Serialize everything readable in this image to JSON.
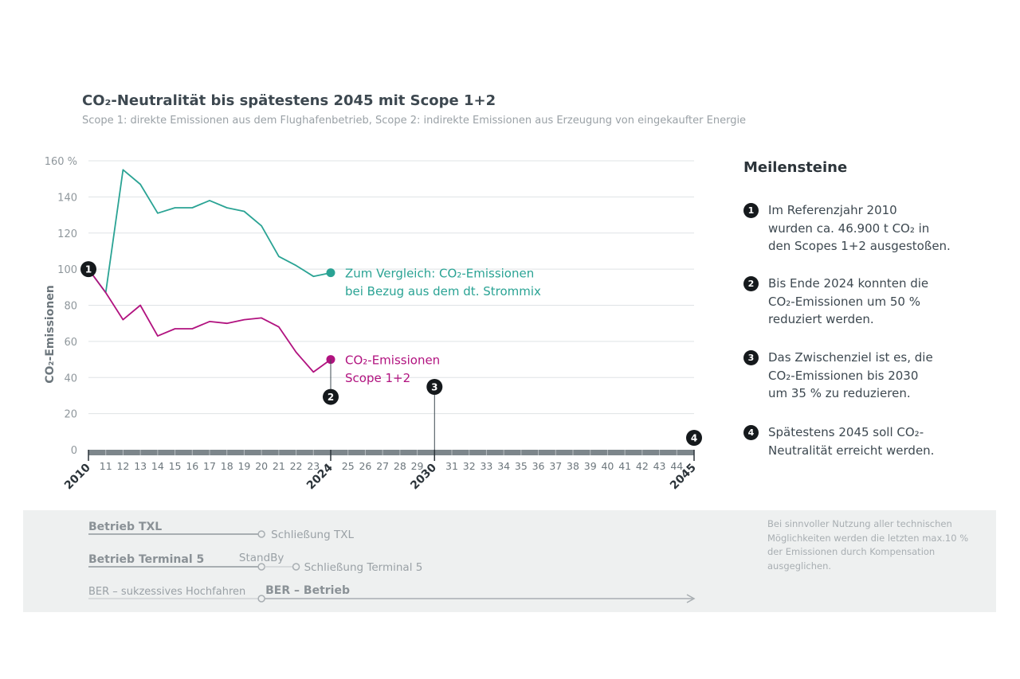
{
  "title": "CO₂-Neutralität bis spätestens 2045 mit Scope 1+2",
  "subtitle": "Scope 1: direkte Emissionen aus dem Flughafenbetrieb, Scope 2: indirekte Emissionen aus Erzeugung von eingekaufter Energie",
  "colors": {
    "teal": "#2aa394",
    "magenta": "#b1127f",
    "axis_gray": "#7d868b",
    "dark": "#15191c"
  },
  "chart_data": {
    "type": "line",
    "title": "CO₂-Neutralität bis spätestens 2045 mit Scope 1+2",
    "ylabel": "CO₂-Emissionen",
    "xlim": [
      2010,
      2045
    ],
    "ylim": [
      0,
      160
    ],
    "yticks": [
      0,
      20,
      40,
      60,
      80,
      100,
      120,
      140,
      160
    ],
    "ytick_labels": [
      "0",
      "20",
      "40",
      "60",
      "80",
      "100",
      "120",
      "140",
      "160 %"
    ],
    "xtick_labels": [
      "11",
      "12",
      "13",
      "14",
      "15",
      "16",
      "17",
      "18",
      "19",
      "20",
      "21",
      "22",
      "23",
      "25",
      "26",
      "27",
      "28",
      "29",
      "31",
      "32",
      "33",
      "34",
      "35",
      "36",
      "37",
      "38",
      "39",
      "40",
      "41",
      "42",
      "43",
      "44"
    ],
    "xtick_values": [
      2011,
      2012,
      2013,
      2014,
      2015,
      2016,
      2017,
      2018,
      2019,
      2020,
      2021,
      2022,
      2023,
      2025,
      2026,
      2027,
      2028,
      2029,
      2031,
      2032,
      2033,
      2034,
      2035,
      2036,
      2037,
      2038,
      2039,
      2040,
      2041,
      2042,
      2043,
      2044
    ],
    "xmajor_labels": [
      "2010",
      "2024",
      "2030",
      "2045"
    ],
    "xmajor_values": [
      2010,
      2024,
      2030,
      2045
    ],
    "grid": true,
    "series": [
      {
        "name": "Zum Vergleich: CO₂-Emissionen bei Bezug aus dem dt. Strommix",
        "label_lines": [
          "Zum Vergleich: CO₂-Emissionen",
          "bei Bezug aus dem dt. Strommix"
        ],
        "color": "#2aa394",
        "x": [
          2010,
          2011,
          2012,
          2013,
          2014,
          2015,
          2016,
          2017,
          2018,
          2019,
          2020,
          2021,
          2022,
          2023,
          2024
        ],
        "y": [
          100,
          87,
          155,
          147,
          131,
          134,
          134,
          138,
          134,
          132,
          124,
          107,
          102,
          96,
          98
        ]
      },
      {
        "name": "CO₂-Emissionen Scope 1+2",
        "label_lines": [
          "CO₂-Emissionen",
          "Scope 1+2"
        ],
        "color": "#b1127f",
        "x": [
          2010,
          2011,
          2012,
          2013,
          2014,
          2015,
          2016,
          2017,
          2018,
          2019,
          2020,
          2021,
          2022,
          2023,
          2024
        ],
        "y": [
          100,
          87,
          72,
          80,
          63,
          67,
          67,
          71,
          70,
          72,
          73,
          68,
          54,
          43,
          50
        ]
      }
    ],
    "annotations": [
      {
        "num": "1",
        "x": 2010,
        "y": 100
      },
      {
        "num": "2",
        "x": 2024,
        "y": 50
      },
      {
        "num": "3",
        "x": 2030,
        "y": 0
      },
      {
        "num": "4",
        "x": 2045,
        "y": 0
      }
    ]
  },
  "milestones": {
    "title": "Meilensteine",
    "items": [
      {
        "num": "1",
        "text": "Im Referenzjahr 2010\nwurden ca. 46.900 t CO₂ in\nden Scopes 1+2 ausgestoßen."
      },
      {
        "num": "2",
        "text": "Bis Ende 2024 konnten die\nCO₂-Emissionen um 50 %\nreduziert werden."
      },
      {
        "num": "3",
        "text": "Das Zwischenziel ist es, die\nCO₂-Emissionen bis 2030\num 35 % zu reduzieren."
      },
      {
        "num": "4",
        "text": "Spätestens 2045 soll CO₂-\nNeutralität erreicht werden."
      }
    ]
  },
  "timeline": {
    "txl": {
      "label": "Betrieb TXL",
      "end_label": "Schließung TXL",
      "end_year": 2020
    },
    "t5": {
      "label": "Betrieb Terminal 5",
      "standby_label": "StandBy",
      "standby_year": 2020,
      "end_label": "Schließung Terminal 5",
      "end_year": 2022
    },
    "ber": {
      "ramp_label": "BER – sukzessives Hochfahren",
      "label": "BER – Betrieb",
      "start_year": 2020,
      "end_year": 2045
    }
  },
  "note": "Bei sinnvoller Nutzung aller technischen\nMöglichkeiten werden die letzten max.10 %\nder Emissionen durch Kompensation\nausgeglichen."
}
